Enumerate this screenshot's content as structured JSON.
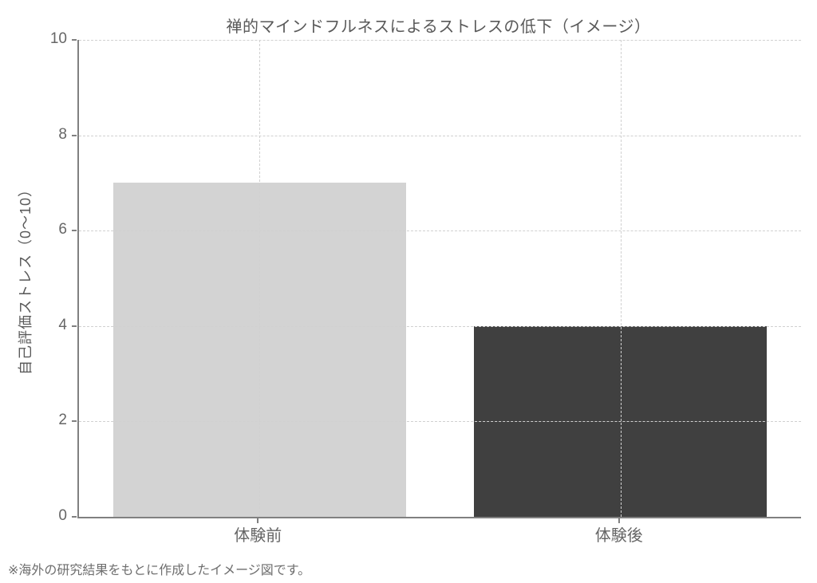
{
  "chart_data": {
    "type": "bar",
    "title": "禅的マインドフルネスによるストレスの低下（イメージ）",
    "categories": [
      "体験前",
      "体験後"
    ],
    "values": [
      7,
      4
    ],
    "bar_colors": [
      "#d3d3d3",
      "#404040"
    ],
    "xlabel": "",
    "ylabel": "自己評価ストレス（0～10）",
    "ylim": [
      0,
      10
    ],
    "yticks": [
      0,
      2,
      4,
      6,
      8,
      10
    ],
    "grid": "dashed light-gray horizontal lines at y ticks and vertical lines at category centers, drawn above bars",
    "legend": "none",
    "annotation": "※海外の研究結果をもとに作成したイメージ図です。"
  },
  "colors": {
    "background": "#ffffff",
    "spine": "#808080",
    "gridline": "#d0d0d0",
    "title_text": "#595959",
    "tick_label_text": "#666666",
    "footnote_text": "#6e6e6e",
    "bar_before": "#d3d3d3",
    "bar_after": "#404040"
  }
}
